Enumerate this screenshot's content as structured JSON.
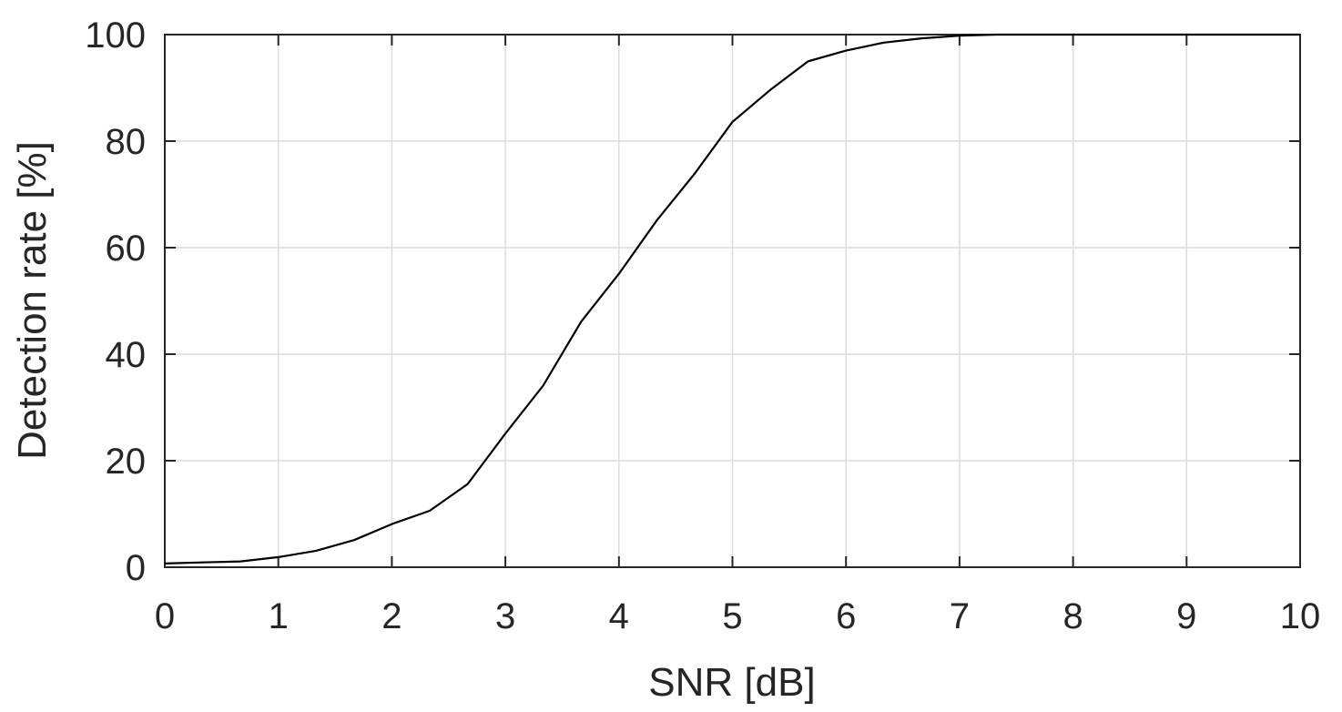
{
  "chart_data": {
    "type": "line",
    "xlabel": "SNR [dB]",
    "ylabel": "Detection rate [%]",
    "xlim": [
      0,
      10
    ],
    "ylim": [
      0,
      100
    ],
    "xticks": [
      0,
      1,
      2,
      3,
      4,
      5,
      6,
      7,
      8,
      9,
      10
    ],
    "yticks": [
      0,
      20,
      40,
      60,
      80,
      100
    ],
    "xtick_labels": [
      "0",
      "1",
      "2",
      "3",
      "4",
      "5",
      "6",
      "7",
      "8",
      "9",
      "10"
    ],
    "ytick_labels": [
      "0",
      "20",
      "40",
      "60",
      "80",
      "100"
    ],
    "grid": true,
    "line_color": "#000000",
    "grid_color": "#dcdcdc",
    "series": [
      {
        "x": [
          0,
          0.333,
          0.667,
          1,
          1.333,
          1.667,
          2,
          2.333,
          2.667,
          3,
          3.333,
          3.667,
          4,
          4.333,
          4.667,
          5,
          5.333,
          5.667,
          6,
          6.333,
          6.667,
          7,
          7.333,
          7.667,
          8,
          8.333,
          8.667,
          9,
          9.333,
          9.667,
          10
        ],
        "y": [
          0.7,
          0.9,
          1.1,
          1.9,
          3.1,
          5.1,
          8.1,
          10.6,
          15.6,
          25.1,
          34.1,
          46.1,
          55.1,
          65.1,
          73.9,
          83.6,
          89.6,
          95.0,
          97.0,
          98.5,
          99.3,
          99.8,
          100,
          100,
          100,
          100,
          100,
          100,
          100,
          100,
          100
        ]
      }
    ]
  }
}
